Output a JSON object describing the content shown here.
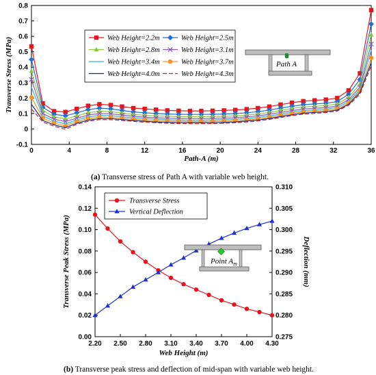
{
  "chart_data": [
    {
      "type": "line",
      "xlabel": "Path-A (m)",
      "ylabel": "Transverse Stress (MPa)",
      "xlim": [
        0,
        36
      ],
      "ylim": [
        -0.1,
        0.8
      ],
      "xticks": [
        0,
        4,
        8,
        12,
        16,
        20,
        24,
        28,
        32,
        36
      ],
      "yticks": [
        -0.1,
        0,
        0.1,
        0.2,
        0.3,
        0.4,
        0.5,
        0.6,
        0.7,
        0.8
      ],
      "grid": false,
      "legend_position": "top-center",
      "x": [
        0,
        1.2,
        2.4,
        3.6,
        4.8,
        6,
        7.2,
        8.4,
        9.6,
        10.8,
        12,
        13.2,
        14.4,
        15.6,
        16.8,
        18,
        19.2,
        20.4,
        21.6,
        22.8,
        24,
        25.2,
        26.4,
        27.6,
        28.8,
        30,
        31.2,
        32.4,
        33.6,
        34.8,
        36
      ],
      "series": [
        {
          "name": "Web Height=2.2m",
          "color": "#e8141b",
          "marker": "square",
          "values": [
            0.535,
            0.165,
            0.115,
            0.11,
            0.13,
            0.15,
            0.16,
            0.155,
            0.145,
            0.135,
            0.13,
            0.125,
            0.12,
            0.118,
            0.117,
            0.117,
            0.118,
            0.12,
            0.123,
            0.128,
            0.135,
            0.145,
            0.158,
            0.17,
            0.18,
            0.185,
            0.19,
            0.2,
            0.25,
            0.36,
            0.77
          ]
        },
        {
          "name": "Web Height=2.5m",
          "color": "#1f6fd1",
          "marker": "diamond",
          "values": [
            0.45,
            0.14,
            0.095,
            0.085,
            0.105,
            0.125,
            0.135,
            0.13,
            0.12,
            0.11,
            0.105,
            0.1,
            0.097,
            0.095,
            0.094,
            0.094,
            0.095,
            0.097,
            0.1,
            0.105,
            0.112,
            0.122,
            0.135,
            0.147,
            0.157,
            0.162,
            0.167,
            0.177,
            0.225,
            0.32,
            0.68
          ]
        },
        {
          "name": "Web Height=2.8m",
          "color": "#8cc63f",
          "marker": "triangle",
          "values": [
            0.375,
            0.12,
            0.078,
            0.065,
            0.085,
            0.105,
            0.115,
            0.112,
            0.103,
            0.094,
            0.089,
            0.085,
            0.082,
            0.08,
            0.079,
            0.079,
            0.08,
            0.082,
            0.085,
            0.09,
            0.097,
            0.107,
            0.12,
            0.132,
            0.142,
            0.147,
            0.152,
            0.162,
            0.205,
            0.29,
            0.61
          ]
        },
        {
          "name": "Web Height=3.1m",
          "color": "#8e5ab5",
          "marker": "x",
          "values": [
            0.32,
            0.1,
            0.063,
            0.048,
            0.07,
            0.09,
            0.1,
            0.098,
            0.09,
            0.082,
            0.077,
            0.073,
            0.07,
            0.068,
            0.067,
            0.067,
            0.068,
            0.07,
            0.073,
            0.078,
            0.085,
            0.095,
            0.107,
            0.119,
            0.129,
            0.134,
            0.139,
            0.149,
            0.19,
            0.27,
            0.55
          ]
        },
        {
          "name": "Web Height=3.4m",
          "color": "#2bb6d8",
          "marker": "none",
          "values": [
            0.27,
            0.085,
            0.05,
            0.033,
            0.058,
            0.078,
            0.088,
            0.087,
            0.079,
            0.072,
            0.067,
            0.063,
            0.06,
            0.058,
            0.057,
            0.057,
            0.058,
            0.06,
            0.063,
            0.068,
            0.075,
            0.085,
            0.097,
            0.109,
            0.119,
            0.124,
            0.129,
            0.139,
            0.178,
            0.255,
            0.51
          ]
        },
        {
          "name": "Web Height=3.7m",
          "color": "#f7931e",
          "marker": "circle",
          "values": [
            0.205,
            0.07,
            0.038,
            0.02,
            0.047,
            0.067,
            0.077,
            0.076,
            0.069,
            0.063,
            0.058,
            0.054,
            0.051,
            0.049,
            0.048,
            0.048,
            0.049,
            0.051,
            0.054,
            0.059,
            0.066,
            0.076,
            0.088,
            0.1,
            0.11,
            0.115,
            0.12,
            0.13,
            0.168,
            0.245,
            0.46
          ]
        },
        {
          "name": "Web Height=4.0m",
          "color": "#1b2a7a",
          "marker": "none",
          "values": [
            0.16,
            0.055,
            0.027,
            0.008,
            0.037,
            0.057,
            0.067,
            0.067,
            0.061,
            0.055,
            0.05,
            0.046,
            0.043,
            0.041,
            0.04,
            0.04,
            0.041,
            0.043,
            0.046,
            0.051,
            0.058,
            0.068,
            0.08,
            0.092,
            0.102,
            0.107,
            0.112,
            0.122,
            0.16,
            0.235,
            0.43
          ]
        },
        {
          "name": "Web Height=4.3m",
          "color": "#b5293e",
          "marker": "none",
          "dashed": true,
          "values": [
            0.13,
            0.045,
            0.018,
            -0.002,
            0.03,
            0.05,
            0.06,
            0.06,
            0.055,
            0.049,
            0.044,
            0.04,
            0.037,
            0.035,
            0.034,
            0.034,
            0.035,
            0.037,
            0.04,
            0.045,
            0.052,
            0.062,
            0.074,
            0.086,
            0.096,
            0.101,
            0.106,
            0.116,
            0.153,
            0.225,
            0.41
          ]
        }
      ],
      "annotation": "Path A"
    },
    {
      "type": "line",
      "xlabel": "Web Height (m)",
      "ylabel": "Transverse Peak Stress (MPa)",
      "y2label": "Deflection (mm)",
      "xlim": [
        2.2,
        4.3
      ],
      "ylim": [
        0,
        0.14
      ],
      "y2lim": [
        0.275,
        0.31
      ],
      "xticks": [
        "2.20",
        "2.50",
        "2.80",
        "3.10",
        "3.40",
        "3.70",
        "4.00",
        "4.30"
      ],
      "yticks": [
        "0.00",
        "0.02",
        "0.04",
        "0.06",
        "0.08",
        "0.10",
        "0.12",
        "0.14"
      ],
      "y2ticks": [
        "0.275",
        "0.280",
        "0.285",
        "0.290",
        "0.295",
        "0.300",
        "0.305",
        "0.310"
      ],
      "grid": false,
      "legend_position": "top-left",
      "x": [
        2.2,
        2.35,
        2.5,
        2.65,
        2.8,
        2.95,
        3.1,
        3.25,
        3.4,
        3.55,
        3.7,
        3.85,
        4.0,
        4.15,
        4.3
      ],
      "series": [
        {
          "name": "Transverse Stress",
          "color": "#e8141b",
          "marker": "circle",
          "axis": "left",
          "values": [
            0.114,
            0.101,
            0.089,
            0.079,
            0.07,
            0.062,
            0.055,
            0.049,
            0.044,
            0.039,
            0.034,
            0.03,
            0.026,
            0.023,
            0.02
          ]
        },
        {
          "name": "Vertical Deflection",
          "color": "#1f2fd1",
          "marker": "triangle",
          "axis": "right",
          "values": [
            0.28,
            0.2822,
            0.2844,
            0.2866,
            0.2883,
            0.29,
            0.2918,
            0.2934,
            0.2951,
            0.2966,
            0.298,
            0.2992,
            0.3003,
            0.3012,
            0.302
          ]
        }
      ],
      "annotation_main": "Point A",
      "annotation_sub": "m"
    }
  ],
  "captions": {
    "a_label": "(a)",
    "a_text": " Transverse stress of Path A with variable web height.",
    "b_label": "(b)",
    "b_text": " Transverse peak stress and deflection of mid-span with variable web height."
  }
}
